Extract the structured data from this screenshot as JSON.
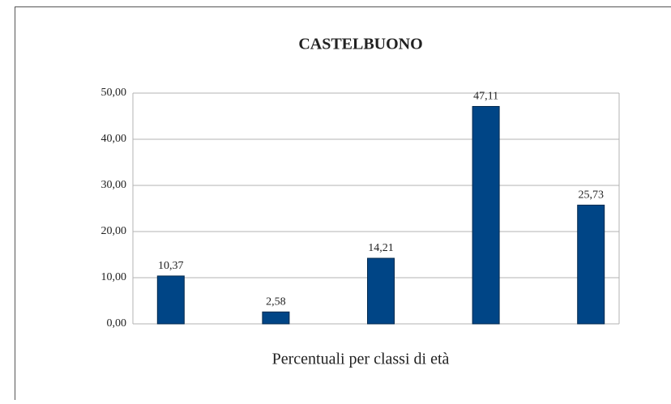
{
  "chart_data": {
    "type": "bar",
    "title": "CASTELBUONO",
    "x_label": "Percentuali per classi di età",
    "categories": [
      null,
      null,
      null,
      null,
      null
    ],
    "values": [
      10.37,
      2.58,
      14.21,
      47.11,
      25.73
    ],
    "value_labels": [
      "10,37",
      "2,58",
      "14,21",
      "47,11",
      "25,73"
    ],
    "color": "#004586",
    "ylim": [
      0,
      50
    ],
    "yticks": [
      {
        "value": 0,
        "label": "0,00"
      },
      {
        "value": 10,
        "label": "10,00"
      },
      {
        "value": 20,
        "label": "20,00"
      },
      {
        "value": 30,
        "label": "30,00"
      },
      {
        "value": 40,
        "label": "40,00"
      },
      {
        "value": 50,
        "label": "50,00"
      }
    ],
    "grid": true
  }
}
